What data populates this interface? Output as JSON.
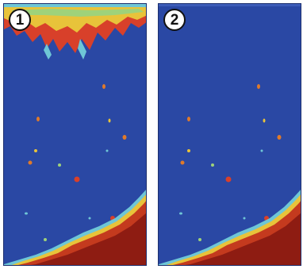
{
  "panels": [
    {
      "badge": "1",
      "surface_clutter": true
    },
    {
      "badge": "2",
      "surface_clutter": false
    }
  ],
  "colors": {
    "water": "#2a48a4",
    "bottom_dark": "#8e1c12",
    "bottom_mid": "#c43a1e",
    "clutter_red": "#d8402a",
    "clutter_yellow": "#e8c33a",
    "clutter_cyan": "#6ec6d6",
    "target_orange": "#e07a2a"
  },
  "icons": [
    "fish-arch-icon",
    "bottom-echo",
    "surface-clutter"
  ]
}
